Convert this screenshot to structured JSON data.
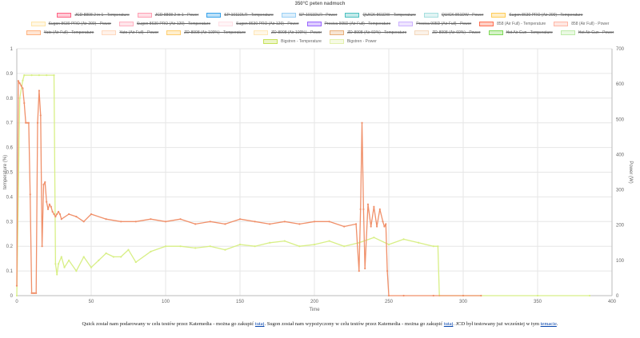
{
  "chart_data": {
    "type": "line",
    "title": "350°C peten nadmuch",
    "xlabel": "Time",
    "ylabel_left": "temperature (%)",
    "ylabel_right": "Power (W)",
    "xlim": [
      0,
      400
    ],
    "ylim_left": [
      0,
      1
    ],
    "ylim_right": [
      0,
      700
    ],
    "x_ticks": [
      0,
      50,
      100,
      150,
      200,
      250,
      300,
      350,
      400
    ],
    "y_ticks_left": [
      0,
      0.1,
      0.2,
      0.3,
      0.4,
      0.5,
      0.6,
      0.7,
      0.8,
      0.9,
      1.0
    ],
    "y_ticks_right": [
      0,
      100,
      200,
      300,
      400,
      500,
      600,
      700
    ],
    "grid": true,
    "legend_position": "top",
    "legend": [
      {
        "label": "JCD 8898 2 in 1 - Temperature",
        "color": "#ff6384",
        "hidden": true
      },
      {
        "label": "JCD 8898 2 in 1 - Power",
        "color": "#ff9fb3",
        "hidden": true
      },
      {
        "label": "SP-1011DLR - Temperature",
        "color": "#36a2eb",
        "hidden": true
      },
      {
        "label": "SP-1011DLR - Power",
        "color": "#9ad0f5",
        "hidden": true
      },
      {
        "label": "QUICK 861DW - Temperature",
        "color": "#4bc0c0",
        "hidden": true
      },
      {
        "label": "QUICK 861DW - Power",
        "color": "#a5dfdf",
        "hidden": true
      },
      {
        "label": "Sugon 8630 PRO (Air 200) - Temperature",
        "color": "#ffcd56",
        "hidden": true
      },
      {
        "label": "Sugon 8630 PRO (Air 200) - Power",
        "color": "#ffe6aa",
        "hidden": true
      },
      {
        "label": "Sugon 8630 PRO (Air 120) - Temperature",
        "color": "#ffb1c1",
        "hidden": true
      },
      {
        "label": "Sugon 8630 PRO (Air 120) - Power",
        "color": "#ffe0e6",
        "hidden": true
      },
      {
        "label": "Preciva 905D (Air Full) - Temperature",
        "color": "#9966ff",
        "hidden": true
      },
      {
        "label": "Preciva 905D (Air Full) - Power",
        "color": "#ccb2ff",
        "hidden": true
      },
      {
        "label": "858 (Air Full) - Temperature",
        "color": "#ff6e50",
        "hidden": false
      },
      {
        "label": "858 (Air Full) - Power",
        "color": "#ffb7a7",
        "hidden": false
      },
      {
        "label": "Yato (Air Full) - Temperature",
        "color": "#ffb380",
        "hidden": true
      },
      {
        "label": "Yato (Air Full) - Power",
        "color": "#ffd9bf",
        "hidden": true
      },
      {
        "label": "ZD-8908 (Air 100%) - Temperature",
        "color": "#ffce70",
        "hidden": true
      },
      {
        "label": "ZD-8908 (Air 100%) - Power",
        "color": "#ffe7b8",
        "hidden": true
      },
      {
        "label": "ZD-8908 (Air 60%) - Temperature",
        "color": "#e8b07a",
        "hidden": true
      },
      {
        "label": "ZD-8908 (Air 60%) - Power",
        "color": "#f4d8bd",
        "hidden": true
      },
      {
        "label": "Hot Air Gun - Temperature",
        "color": "#7ed957",
        "hidden": true
      },
      {
        "label": "Hot Air Gun - Power",
        "color": "#bfecab",
        "hidden": true
      },
      {
        "label": "Bigstren - Temperature",
        "color": "#c6e25a",
        "hidden": false
      },
      {
        "label": "Bigstren - Power",
        "color": "#e3f1ad",
        "hidden": false
      }
    ],
    "series": [
      {
        "name": "858 (Air Full) - Temperature",
        "axis": "left",
        "color": "#f0906a",
        "x": [
          0,
          1,
          2,
          3,
          4,
          5,
          6,
          7,
          8,
          9,
          10,
          11,
          12,
          13,
          14,
          15,
          16,
          17,
          18,
          19,
          20,
          21,
          22,
          23,
          24,
          25,
          26,
          27,
          28,
          29,
          30,
          35,
          40,
          45,
          50,
          60,
          70,
          80,
          90,
          100,
          110,
          120,
          130,
          140,
          150,
          160,
          170,
          180,
          190,
          200,
          210,
          220,
          228,
          230,
          231,
          232,
          233,
          234,
          236,
          238,
          240,
          242,
          244,
          246,
          247,
          248,
          249,
          250,
          260,
          280,
          300,
          312
        ],
        "y": [
          0.04,
          0.87,
          0.86,
          0.85,
          0.84,
          0.78,
          0.7,
          0.7,
          0.7,
          0.41,
          0.01,
          0.01,
          0.01,
          0.01,
          0.7,
          0.83,
          0.73,
          0.2,
          0.45,
          0.46,
          0.38,
          0.35,
          0.37,
          0.36,
          0.34,
          0.33,
          0.32,
          0.33,
          0.34,
          0.33,
          0.31,
          0.33,
          0.32,
          0.3,
          0.33,
          0.31,
          0.3,
          0.3,
          0.31,
          0.3,
          0.31,
          0.29,
          0.3,
          0.29,
          0.31,
          0.3,
          0.29,
          0.3,
          0.29,
          0.3,
          0.3,
          0.28,
          0.29,
          0.1,
          0.35,
          0.7,
          0.35,
          0.11,
          0.37,
          0.28,
          0.36,
          0.28,
          0.35,
          0.3,
          0.28,
          0.29,
          0.1,
          0.0,
          0.0,
          0.0,
          0.0,
          0.0
        ]
      },
      {
        "name": "Bigstren - Power",
        "axis": "right",
        "color": "#d8ef86",
        "x": [
          0,
          2,
          4,
          5,
          10,
          15,
          20,
          25,
          26,
          27,
          28,
          30,
          32,
          35,
          40,
          45,
          50,
          55,
          60,
          65,
          70,
          75,
          80,
          90,
          100,
          110,
          120,
          130,
          140,
          150,
          160,
          170,
          180,
          190,
          200,
          210,
          220,
          230,
          240,
          250,
          260,
          270,
          280,
          283,
          284,
          300,
          350,
          385
        ],
        "y": [
          0,
          560,
          610,
          625,
          625,
          625,
          625,
          625,
          90,
          60,
          90,
          110,
          80,
          100,
          70,
          110,
          80,
          100,
          120,
          110,
          110,
          130,
          95,
          125,
          140,
          140,
          135,
          140,
          130,
          145,
          140,
          150,
          155,
          140,
          145,
          155,
          140,
          150,
          165,
          145,
          160,
          150,
          140,
          140,
          0,
          0,
          0,
          0
        ]
      }
    ]
  },
  "footer": {
    "part1": "Quick został nam podarowany w celu testów przez Katemedia - można go zakupić ",
    "link1": "tutaj",
    "part2": ". Sugon został nam wypożyczony w celu testów przez Katemedia - można go zakupić ",
    "link2": "tutaj",
    "part3": ". JCD był testowany już wcześniej w tym ",
    "link3": "temacie",
    "part4": "."
  }
}
